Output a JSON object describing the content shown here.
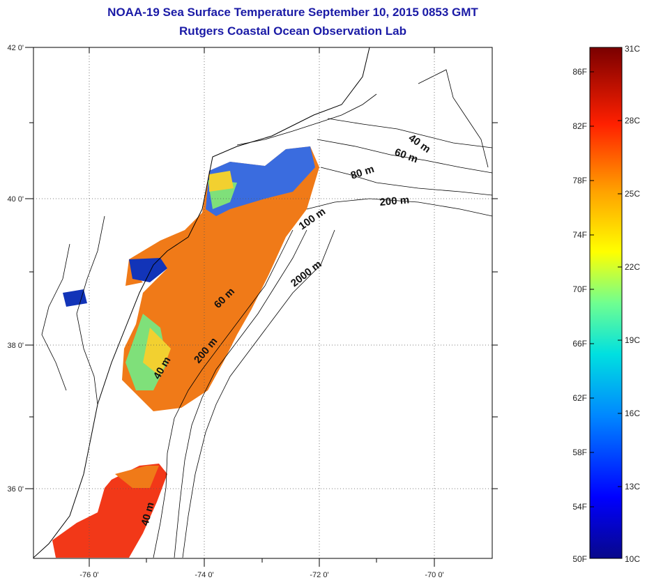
{
  "title_line1": "NOAA-19 Sea Surface Temperature September 10, 2015 0853 GMT",
  "title_line2": "Rutgers Coastal Ocean Observation Lab",
  "map": {
    "x_ticks": [
      "-76 0'",
      "-74 0'",
      "-72 0'",
      "-70 0'"
    ],
    "y_ticks": [
      "42 0'",
      "40 0'",
      "38 0'",
      "36 0'"
    ],
    "lon_range": [
      -77.0,
      -69.0
    ],
    "lat_range": [
      35.0,
      42.0
    ],
    "gridlines": true
  },
  "depth_labels": [
    "40 m",
    "60 m",
    "80 m",
    "200 m",
    "100 m",
    "2000 m",
    "60 m",
    "200 m",
    "40 m",
    "40 m"
  ],
  "colorbar": {
    "fahrenheit_labels": [
      "86F",
      "82F",
      "78F",
      "74F",
      "70F",
      "66F",
      "62F",
      "58F",
      "54F",
      "50F"
    ],
    "celsius_labels": [
      "31C",
      "28C",
      "25C",
      "22C",
      "19C",
      "16C",
      "13C",
      "10C"
    ],
    "range_c": [
      10,
      31
    ],
    "colors": [
      "#0a0a8c",
      "#0000ff",
      "#0080ff",
      "#00ffff",
      "#80ff80",
      "#ffff00",
      "#ff8000",
      "#ff0000",
      "#800000"
    ]
  }
}
